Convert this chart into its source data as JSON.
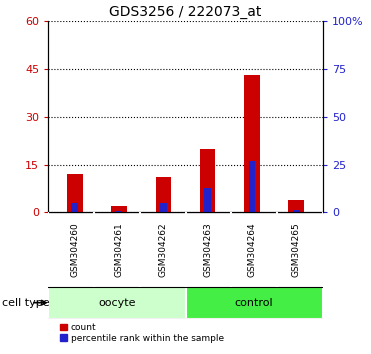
{
  "title": "GDS3256 / 222073_at",
  "samples": [
    "GSM304260",
    "GSM304261",
    "GSM304262",
    "GSM304263",
    "GSM304264",
    "GSM304265"
  ],
  "count_values": [
    12,
    2,
    11,
    20,
    43,
    4
  ],
  "percentile_values": [
    4.8,
    0.6,
    4.8,
    13,
    27,
    1.2
  ],
  "ylim_left": [
    0,
    60
  ],
  "ylim_right": [
    0,
    100
  ],
  "yticks_left": [
    0,
    15,
    30,
    45,
    60
  ],
  "ytick_labels_left": [
    "0",
    "15",
    "30",
    "45",
    "60"
  ],
  "yticks_right": [
    0,
    25,
    50,
    75,
    100
  ],
  "ytick_labels_right": [
    "0",
    "25",
    "50",
    "75",
    "100%"
  ],
  "count_color": "#cc0000",
  "percentile_color": "#2222cc",
  "groups": [
    {
      "label": "oocyte",
      "span": [
        0,
        3
      ],
      "color": "#ccffcc"
    },
    {
      "label": "control",
      "span": [
        3,
        6
      ],
      "color": "#44ee44"
    }
  ],
  "cell_type_label": "cell type",
  "legend_count": "count",
  "legend_percentile": "percentile rank within the sample",
  "red_bar_width": 0.35,
  "blue_bar_width": 0.15,
  "bg_color": "#ffffff",
  "sample_bg": "#c8c8c8",
  "title_fontsize": 10
}
